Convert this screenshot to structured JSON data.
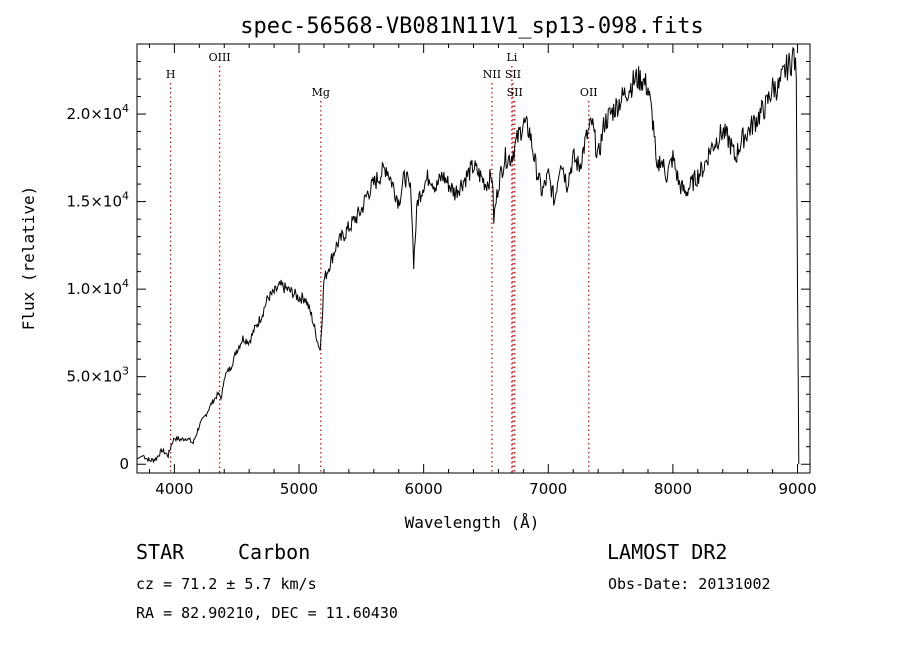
{
  "chart_data": {
    "type": "line",
    "title": "spec-56568-VB081N11V1_sp13-098.fits",
    "xlabel": "Wavelength (Å)",
    "ylabel": "Flux (relative)",
    "xlim": [
      3700,
      9100
    ],
    "ylim": [
      -500,
      24000
    ],
    "xticks": [
      4000,
      5000,
      6000,
      7000,
      8000,
      9000
    ],
    "yticks": [
      {
        "value": 0,
        "label": "0",
        "mantissa": "",
        "exp": ""
      },
      {
        "value": 5000,
        "label": "5.0×10",
        "mantissa": "5.0×10",
        "exp": "3"
      },
      {
        "value": 10000,
        "label": "1.0×10",
        "mantissa": "1.0×10",
        "exp": "4"
      },
      {
        "value": 15000,
        "label": "1.5×10",
        "mantissa": "1.5×10",
        "exp": "4"
      },
      {
        "value": 20000,
        "label": "2.0×10",
        "mantissa": "2.0×10",
        "exp": "4"
      }
    ],
    "spectral_lines": [
      {
        "label": "H",
        "wavelength": 3970,
        "level": 1
      },
      {
        "label": "OIII",
        "wavelength": 4363,
        "level": 0
      },
      {
        "label": "Mg",
        "wavelength": 5175,
        "level": 2
      },
      {
        "label": "NII",
        "wavelength": 6548,
        "level": 1
      },
      {
        "label": "Li",
        "wavelength": 6708,
        "level": 0
      },
      {
        "label": "SII",
        "wavelength": 6717,
        "level": 1
      },
      {
        "label": "SII",
        "wavelength": 6731,
        "level": 2
      },
      {
        "label": "OII",
        "wavelength": 7325,
        "level": 2
      }
    ],
    "line_color": "#c00000",
    "series": [
      {
        "color": "#000000",
        "x": [
          3700,
          3750,
          3800,
          3850,
          3900,
          3950,
          3980,
          4000,
          4050,
          4100,
          4150,
          4200,
          4250,
          4300,
          4350,
          4380,
          4400,
          4450,
          4500,
          4550,
          4600,
          4650,
          4700,
          4750,
          4800,
          4850,
          4900,
          4950,
          5000,
          5050,
          5100,
          5150,
          5170,
          5190,
          5200,
          5250,
          5300,
          5350,
          5400,
          5450,
          5500,
          5550,
          5600,
          5650,
          5700,
          5750,
          5800,
          5850,
          5900,
          5920,
          5950,
          6000,
          6050,
          6100,
          6150,
          6200,
          6250,
          6300,
          6350,
          6400,
          6450,
          6500,
          6550,
          6563,
          6600,
          6650,
          6700,
          6750,
          6800,
          6850,
          6900,
          6950,
          7000,
          7050,
          7100,
          7150,
          7200,
          7250,
          7300,
          7350,
          7400,
          7450,
          7500,
          7550,
          7600,
          7650,
          7700,
          7750,
          7800,
          7850,
          7870,
          7900,
          7950,
          8000,
          8050,
          8100,
          8150,
          8200,
          8250,
          8300,
          8350,
          8400,
          8450,
          8500,
          8550,
          8600,
          8650,
          8700,
          8750,
          8800,
          8850,
          8900,
          8950,
          8970,
          8990,
          9000,
          9010
        ],
        "y": [
          300,
          500,
          200,
          300,
          800,
          500,
          1200,
          1500,
          1400,
          1500,
          1200,
          2200,
          2800,
          3500,
          4000,
          3800,
          5000,
          5500,
          6500,
          7200,
          7000,
          7800,
          8500,
          9500,
          9800,
          10200,
          10000,
          9800,
          9500,
          9500,
          8500,
          7000,
          6500,
          9000,
          10500,
          11500,
          12500,
          13000,
          13500,
          14000,
          14500,
          15500,
          16000,
          16500,
          17000,
          16000,
          15000,
          16500,
          15500,
          11500,
          15000,
          16000,
          16500,
          15800,
          16500,
          16000,
          15500,
          16000,
          16500,
          17000,
          16500,
          16000,
          16500,
          14000,
          16000,
          17500,
          17500,
          18500,
          19500,
          19000,
          17000,
          15500,
          16500,
          15000,
          17500,
          16000,
          17500,
          17000,
          18500,
          19500,
          17500,
          19500,
          20000,
          20500,
          21000,
          21500,
          22000,
          22000,
          21500,
          19000,
          16500,
          17500,
          16500,
          17500,
          16000,
          15500,
          16000,
          16500,
          17000,
          18000,
          18500,
          19000,
          18500,
          17500,
          18500,
          19000,
          19500,
          20000,
          20500,
          21500,
          21500,
          22500,
          23000,
          23500,
          22000,
          10000,
          0
        ]
      }
    ]
  },
  "footer": {
    "object_class": "STAR",
    "subclass": "Carbon",
    "survey": "LAMOST DR2",
    "redshift": "cz = 71.2 ± 5.7 km/s",
    "obs_date": "Obs-Date: 20131002",
    "coords": "RA =  82.90210, DEC =  11.60430"
  }
}
